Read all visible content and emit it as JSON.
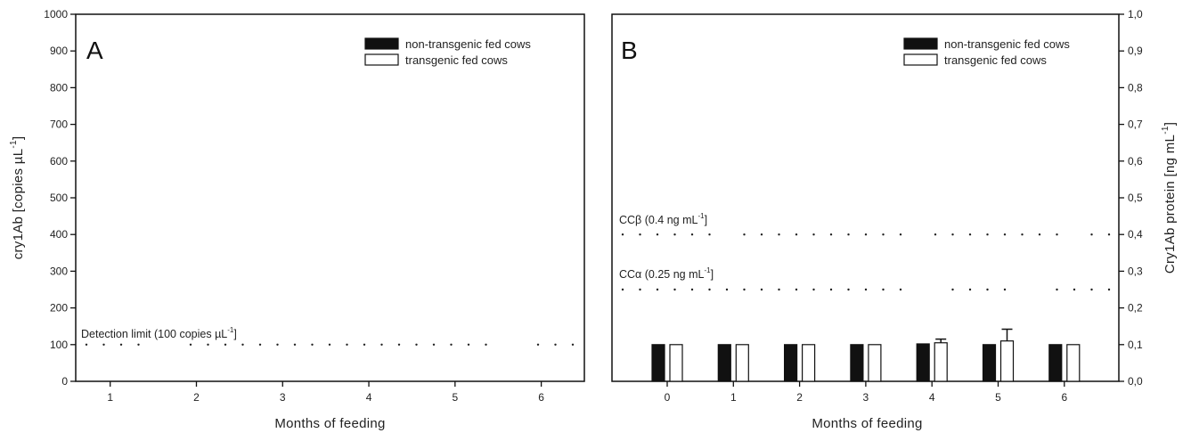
{
  "chart_data": [
    {
      "type": "line",
      "panel_label": "A",
      "xlabel": "Months of feeding",
      "ylabel": "cry1Ab [copies µL",
      "ylabel_sup": "-1",
      "ylabel_close": "]",
      "xlim": [
        0.6,
        6.5
      ],
      "ylim": [
        0,
        1000
      ],
      "x_ticks": [
        "1",
        "2",
        "3",
        "4",
        "5",
        "6"
      ],
      "y_ticks": [
        "0",
        "100",
        "200",
        "300",
        "400",
        "500",
        "600",
        "700",
        "800",
        "900",
        "1000"
      ],
      "legend": {
        "position": "top-right",
        "entries": [
          {
            "name": "non-transgenic fed cows",
            "color": "#111111"
          },
          {
            "name": "transgenic fed cows",
            "color": "#ffffff"
          }
        ]
      },
      "reference_lines": [
        {
          "label": "Detection limit (100 copies µL",
          "sup": "-1",
          "tail": "]",
          "value": 100
        }
      ],
      "series": []
    },
    {
      "type": "bar",
      "panel_label": "B",
      "xlabel": "Months of feeding",
      "ylabel": "Cry1Ab protein [ng mL",
      "ylabel_sup": "-1",
      "ylabel_close": "]",
      "categories": [
        "0",
        "1",
        "2",
        "3",
        "4",
        "5",
        "6"
      ],
      "ylim": [
        0,
        1.0
      ],
      "y_ticks": [
        "0,0",
        "0,1",
        "0,2",
        "0,3",
        "0,4",
        "0,5",
        "0,6",
        "0,7",
        "0,8",
        "0,9",
        "1,0"
      ],
      "legend": {
        "position": "top-right",
        "entries": [
          {
            "name": "non-transgenic fed cows",
            "color": "#111111"
          },
          {
            "name": "transgenic fed cows",
            "color": "#ffffff"
          }
        ]
      },
      "reference_lines": [
        {
          "label": "CCβ (0.4 ng mL",
          "sup": "-1",
          "tail": "]",
          "value": 0.4
        },
        {
          "label": "CCα (0.25 ng mL",
          "sup": "-1",
          "tail": "]",
          "value": 0.25
        }
      ],
      "series": [
        {
          "name": "non-transgenic fed cows",
          "values": [
            0.1,
            0.1,
            0.1,
            0.1,
            0.102,
            0.1,
            0.1
          ],
          "errors": [
            0,
            0,
            0,
            0,
            0,
            0,
            0
          ]
        },
        {
          "name": "transgenic fed cows",
          "values": [
            0.1,
            0.1,
            0.1,
            0.1,
            0.105,
            0.11,
            0.1
          ],
          "errors": [
            0,
            0,
            0,
            0,
            0.01,
            0.032,
            0
          ]
        }
      ]
    }
  ]
}
